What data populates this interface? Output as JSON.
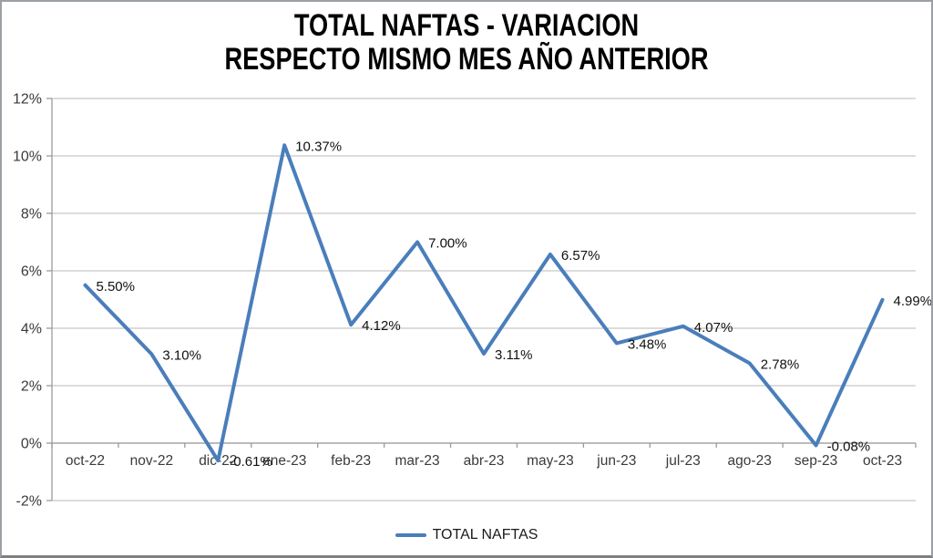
{
  "title": {
    "line1": "TOTAL NAFTAS - VARIACION",
    "line2": "RESPECTO MISMO MES AÑO ANTERIOR"
  },
  "legend": {
    "label": "TOTAL NAFTAS"
  },
  "colors": {
    "line": "#4A7EBB",
    "gridline": "#c6c6c6",
    "axis": "#9b9b9b",
    "data_label": "#111111",
    "tick_label": "#3a3a3a"
  },
  "chart_data": {
    "type": "line",
    "title": "TOTAL NAFTAS - VARIACION RESPECTO MISMO MES AÑO ANTERIOR",
    "categories": [
      "oct-22",
      "nov-22",
      "dic-22",
      "ene-23",
      "feb-23",
      "mar-23",
      "abr-23",
      "may-23",
      "jun-23",
      "jul-23",
      "ago-23",
      "sep-23",
      "oct-23"
    ],
    "series": [
      {
        "name": "TOTAL NAFTAS",
        "values": [
          5.5,
          3.1,
          -0.61,
          10.37,
          4.12,
          7.0,
          3.11,
          6.57,
          3.48,
          4.07,
          2.78,
          -0.08,
          4.99
        ],
        "labels": [
          "5.50%",
          "3.10%",
          "-0.61%",
          "10.37%",
          "4.12%",
          "7.00%",
          "3.11%",
          "6.57%",
          "3.48%",
          "4.07%",
          "2.78%",
          "-0.08%",
          "4.99%"
        ]
      }
    ],
    "xlabel": "",
    "ylabel": "",
    "ylim": [
      -2,
      12
    ],
    "y_tick_step": 2,
    "y_tick_labels": [
      "-2%",
      "0%",
      "2%",
      "4%",
      "6%",
      "8%",
      "10%",
      "12%"
    ],
    "grid": true,
    "legend_position": "bottom",
    "data_labels_shown": true
  }
}
